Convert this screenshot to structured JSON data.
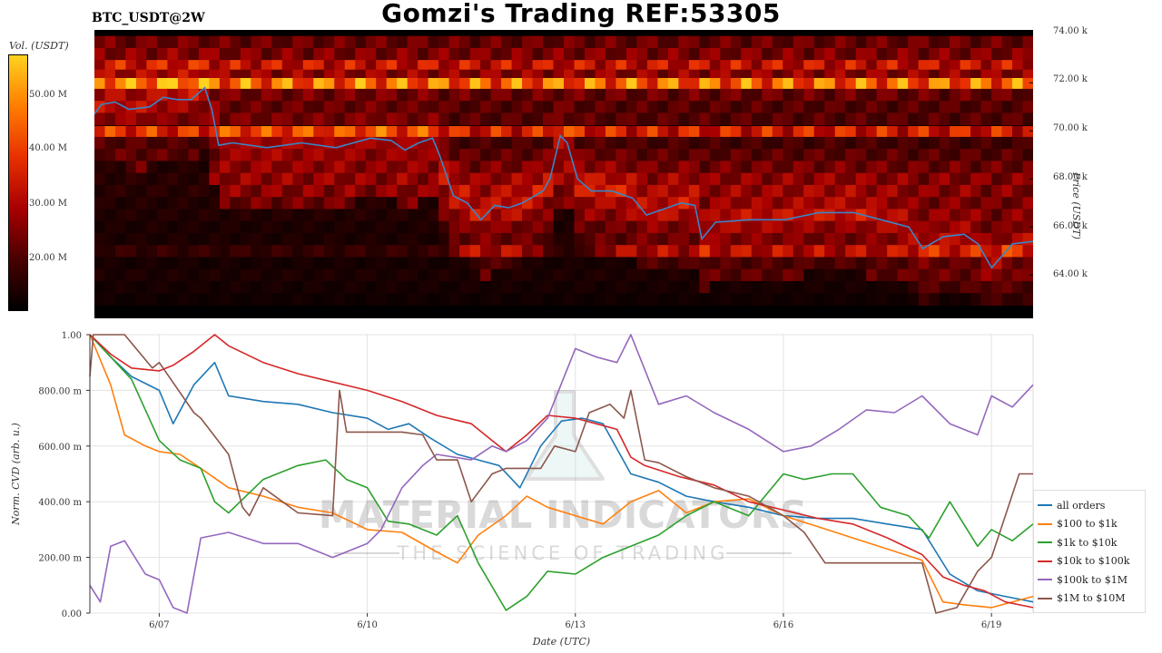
{
  "header": {
    "title": "Gomzi's Trading REF:53305",
    "symbol": "BTC_USDT@2W"
  },
  "watermark": {
    "brand": "MATERIAL INDICATORS",
    "tagline": "THE SCIENCE OF TRADING"
  },
  "chart_data": [
    {
      "type": "heatmap",
      "colorbar_label": "Vol. (USDT)",
      "colorbar_ticks": [
        "50.00 M",
        "40.00 M",
        "30.00 M",
        "20.00 M"
      ],
      "colorbar_range": [
        10,
        57
      ],
      "ylabel": "Price (USDT)",
      "ylim": [
        62200,
        74200
      ],
      "y_ticks": [
        "74.00 k",
        "72.00 k",
        "70.00 k",
        "68.00 k",
        "66.00 k",
        "64.00 k"
      ],
      "y_tick_values": [
        74000,
        72000,
        70000,
        68000,
        66000,
        64000
      ],
      "colors": [
        "#000000",
        "#4a0000",
        "#a80000",
        "#e83000",
        "#ff7d00",
        "#ffd21e",
        "#ffffff"
      ],
      "bands": [
        {
          "price": 73700,
          "intensity": 0.3
        },
        {
          "price": 73200,
          "intensity": 0.35
        },
        {
          "price": 72700,
          "intensity": 0.55
        },
        {
          "price": 72300,
          "intensity": 0.4
        },
        {
          "price": 71950,
          "intensity": 0.85
        },
        {
          "price": 71500,
          "intensity": 0.3
        },
        {
          "price": 71000,
          "intensity": 0.25
        },
        {
          "price": 70500,
          "intensity": 0.25
        },
        {
          "price": 69950,
          "intensity": 0.6
        },
        {
          "price": 69500,
          "intensity": 0.2
        },
        {
          "price": 69000,
          "intensity": 0.25
        },
        {
          "price": 68500,
          "intensity": 0.3
        },
        {
          "price": 68000,
          "intensity": 0.35
        },
        {
          "price": 67500,
          "intensity": 0.35
        },
        {
          "price": 67000,
          "intensity": 0.3
        },
        {
          "price": 66500,
          "intensity": 0.3
        },
        {
          "price": 66000,
          "intensity": 0.25
        },
        {
          "price": 65500,
          "intensity": 0.25
        },
        {
          "price": 65000,
          "intensity": 0.45
        },
        {
          "price": 64500,
          "intensity": 0.2
        },
        {
          "price": 64000,
          "intensity": 0.25
        },
        {
          "price": 63500,
          "intensity": 0.2
        },
        {
          "price": 63000,
          "intensity": 0.15
        }
      ],
      "price_series": {
        "name": "",
        "color": "#3a86c8",
        "x": [
          6.0,
          6.1,
          6.3,
          6.5,
          6.8,
          7.0,
          7.2,
          7.4,
          7.6,
          7.7,
          7.8,
          8.0,
          8.5,
          9.0,
          9.5,
          10.0,
          10.3,
          10.5,
          10.7,
          10.9,
          11.0,
          11.2,
          11.4,
          11.6,
          11.8,
          12.0,
          12.2,
          12.5,
          12.6,
          12.75,
          12.85,
          13.0,
          13.2,
          13.5,
          13.8,
          14.0,
          14.3,
          14.5,
          14.7,
          14.8,
          15.0,
          15.5,
          16.0,
          16.5,
          17.0,
          17.4,
          17.8,
          18.0,
          18.3,
          18.6,
          18.8,
          19.0,
          19.3,
          19.6
        ],
        "y": [
          70700,
          71100,
          71200,
          70900,
          71000,
          71400,
          71300,
          71300,
          71800,
          70900,
          69400,
          69500,
          69300,
          69500,
          69300,
          69700,
          69600,
          69200,
          69500,
          69700,
          69000,
          67300,
          67000,
          66300,
          66900,
          66800,
          67000,
          67500,
          68000,
          69800,
          69500,
          68000,
          67500,
          67500,
          67200,
          66500,
          66800,
          67000,
          66900,
          65500,
          66200,
          66300,
          66300,
          66600,
          66600,
          66300,
          66000,
          65100,
          65600,
          65700,
          65300,
          64300,
          65300,
          65400
        ]
      }
    },
    {
      "type": "line",
      "xlabel": "Date (UTC)",
      "ylabel": "Norm. CVD (arb. u.)",
      "xlim": [
        6.0,
        19.6
      ],
      "ylim": [
        0,
        1
      ],
      "x_ticks": [
        "6/07",
        "6/10",
        "6/13",
        "6/16",
        "6/19"
      ],
      "x_tick_values": [
        7.0,
        10.0,
        13.0,
        16.0,
        19.0
      ],
      "y_ticks": [
        "1.00",
        "800.00 m",
        "600.00 m",
        "400.00 m",
        "200.00 m",
        "0.00"
      ],
      "y_tick_values": [
        1.0,
        0.8,
        0.6,
        0.4,
        0.2,
        0.0
      ],
      "grid": true,
      "legend_position": "bottom-right",
      "series": [
        {
          "name": "all orders",
          "color": "#1f77b4",
          "x": [
            6.0,
            6.3,
            6.6,
            7.0,
            7.2,
            7.5,
            7.8,
            8.0,
            8.5,
            9.0,
            9.5,
            10.0,
            10.3,
            10.6,
            10.9,
            11.3,
            11.6,
            11.9,
            12.2,
            12.5,
            12.8,
            13.1,
            13.4,
            13.8,
            14.2,
            14.6,
            15.0,
            15.5,
            16.0,
            16.5,
            17.0,
            17.5,
            18.0,
            18.4,
            18.8,
            19.2,
            19.6
          ],
          "y": [
            1.0,
            0.92,
            0.85,
            0.8,
            0.68,
            0.82,
            0.9,
            0.78,
            0.76,
            0.75,
            0.72,
            0.7,
            0.66,
            0.68,
            0.63,
            0.57,
            0.55,
            0.53,
            0.45,
            0.6,
            0.69,
            0.7,
            0.68,
            0.5,
            0.47,
            0.42,
            0.4,
            0.38,
            0.35,
            0.34,
            0.34,
            0.32,
            0.3,
            0.14,
            0.08,
            0.06,
            0.04
          ]
        },
        {
          "name": "$100 to $1k",
          "color": "#ff7f0e",
          "x": [
            6.0,
            6.3,
            6.5,
            6.8,
            7.0,
            7.3,
            7.6,
            8.0,
            8.5,
            9.0,
            9.5,
            10.0,
            10.5,
            11.0,
            11.3,
            11.6,
            12.0,
            12.3,
            12.6,
            13.0,
            13.4,
            13.8,
            14.2,
            14.6,
            15.0,
            15.5,
            16.0,
            16.5,
            17.0,
            17.5,
            18.0,
            18.3,
            18.6,
            19.0,
            19.6
          ],
          "y": [
            1.0,
            0.82,
            0.64,
            0.6,
            0.58,
            0.57,
            0.52,
            0.45,
            0.42,
            0.38,
            0.36,
            0.3,
            0.29,
            0.22,
            0.18,
            0.28,
            0.35,
            0.42,
            0.38,
            0.35,
            0.32,
            0.4,
            0.44,
            0.36,
            0.4,
            0.41,
            0.35,
            0.31,
            0.27,
            0.23,
            0.19,
            0.04,
            0.03,
            0.02,
            0.06
          ]
        },
        {
          "name": "$1k to $10k",
          "color": "#2ca02c",
          "x": [
            6.0,
            6.3,
            6.6,
            7.0,
            7.3,
            7.6,
            7.8,
            8.0,
            8.5,
            9.0,
            9.4,
            9.7,
            10.0,
            10.3,
            10.6,
            11.0,
            11.3,
            11.6,
            12.0,
            12.3,
            12.6,
            13.0,
            13.4,
            13.8,
            14.2,
            14.6,
            15.0,
            15.5,
            16.0,
            16.3,
            16.7,
            17.0,
            17.4,
            17.8,
            18.1,
            18.4,
            18.8,
            19.0,
            19.3,
            19.6
          ],
          "y": [
            1.0,
            0.92,
            0.84,
            0.62,
            0.55,
            0.52,
            0.4,
            0.36,
            0.48,
            0.53,
            0.55,
            0.48,
            0.45,
            0.33,
            0.32,
            0.28,
            0.35,
            0.18,
            0.01,
            0.06,
            0.15,
            0.14,
            0.2,
            0.24,
            0.28,
            0.35,
            0.4,
            0.35,
            0.5,
            0.48,
            0.5,
            0.5,
            0.38,
            0.35,
            0.27,
            0.4,
            0.24,
            0.3,
            0.26,
            0.32
          ]
        },
        {
          "name": "$10k to $100k",
          "color": "#d62728",
          "x": [
            6.0,
            6.3,
            6.6,
            7.0,
            7.2,
            7.5,
            7.8,
            8.0,
            8.5,
            9.0,
            9.5,
            10.0,
            10.5,
            11.0,
            11.5,
            11.8,
            12.0,
            12.3,
            12.6,
            13.0,
            13.3,
            13.6,
            13.8,
            14.0,
            14.5,
            15.0,
            15.5,
            16.0,
            16.5,
            17.0,
            17.5,
            18.0,
            18.3,
            18.6,
            18.9,
            19.2,
            19.6
          ],
          "y": [
            1.0,
            0.93,
            0.88,
            0.87,
            0.89,
            0.94,
            1.0,
            0.96,
            0.9,
            0.86,
            0.83,
            0.8,
            0.76,
            0.71,
            0.68,
            0.62,
            0.58,
            0.64,
            0.71,
            0.7,
            0.68,
            0.66,
            0.56,
            0.53,
            0.49,
            0.46,
            0.4,
            0.37,
            0.34,
            0.32,
            0.27,
            0.21,
            0.13,
            0.1,
            0.08,
            0.04,
            0.02
          ]
        },
        {
          "name": "$100k to $1M",
          "color": "#9467bd",
          "x": [
            6.0,
            6.15,
            6.3,
            6.5,
            6.8,
            7.0,
            7.2,
            7.4,
            7.6,
            8.0,
            8.5,
            9.0,
            9.5,
            10.0,
            10.2,
            10.5,
            10.8,
            11.0,
            11.5,
            11.8,
            12.0,
            12.3,
            12.6,
            13.0,
            13.3,
            13.6,
            13.8,
            14.2,
            14.6,
            15.0,
            15.5,
            16.0,
            16.4,
            16.8,
            17.2,
            17.6,
            18.0,
            18.4,
            18.8,
            19.0,
            19.3,
            19.6
          ],
          "y": [
            0.1,
            0.04,
            0.24,
            0.26,
            0.14,
            0.12,
            0.02,
            0.0,
            0.27,
            0.29,
            0.25,
            0.25,
            0.2,
            0.25,
            0.3,
            0.45,
            0.53,
            0.57,
            0.55,
            0.6,
            0.58,
            0.62,
            0.7,
            0.95,
            0.92,
            0.9,
            1.0,
            0.75,
            0.78,
            0.72,
            0.66,
            0.58,
            0.6,
            0.66,
            0.73,
            0.72,
            0.78,
            0.68,
            0.64,
            0.78,
            0.74,
            0.82
          ]
        },
        {
          "name": "$1M to $10M",
          "color": "#8c564b",
          "x": [
            6.0,
            6.05,
            6.5,
            6.9,
            7.0,
            7.5,
            7.6,
            8.0,
            8.2,
            8.3,
            8.5,
            9.0,
            9.5,
            9.6,
            9.7,
            10.0,
            10.5,
            10.8,
            11.0,
            11.3,
            11.5,
            11.8,
            12.0,
            12.5,
            12.7,
            13.0,
            13.2,
            13.5,
            13.7,
            13.8,
            14.0,
            14.2,
            14.6,
            15.0,
            15.5,
            16.0,
            16.3,
            16.6,
            17.0,
            17.5,
            18.0,
            18.2,
            18.5,
            18.8,
            19.0,
            19.4,
            19.6
          ],
          "y": [
            0.85,
            1.0,
            1.0,
            0.88,
            0.9,
            0.72,
            0.7,
            0.57,
            0.38,
            0.35,
            0.45,
            0.36,
            0.35,
            0.8,
            0.65,
            0.65,
            0.65,
            0.64,
            0.55,
            0.55,
            0.4,
            0.5,
            0.52,
            0.52,
            0.6,
            0.58,
            0.72,
            0.75,
            0.7,
            0.8,
            0.55,
            0.54,
            0.49,
            0.45,
            0.42,
            0.35,
            0.29,
            0.18,
            0.18,
            0.18,
            0.18,
            0.0,
            0.02,
            0.15,
            0.2,
            0.5,
            0.5
          ]
        }
      ]
    }
  ]
}
